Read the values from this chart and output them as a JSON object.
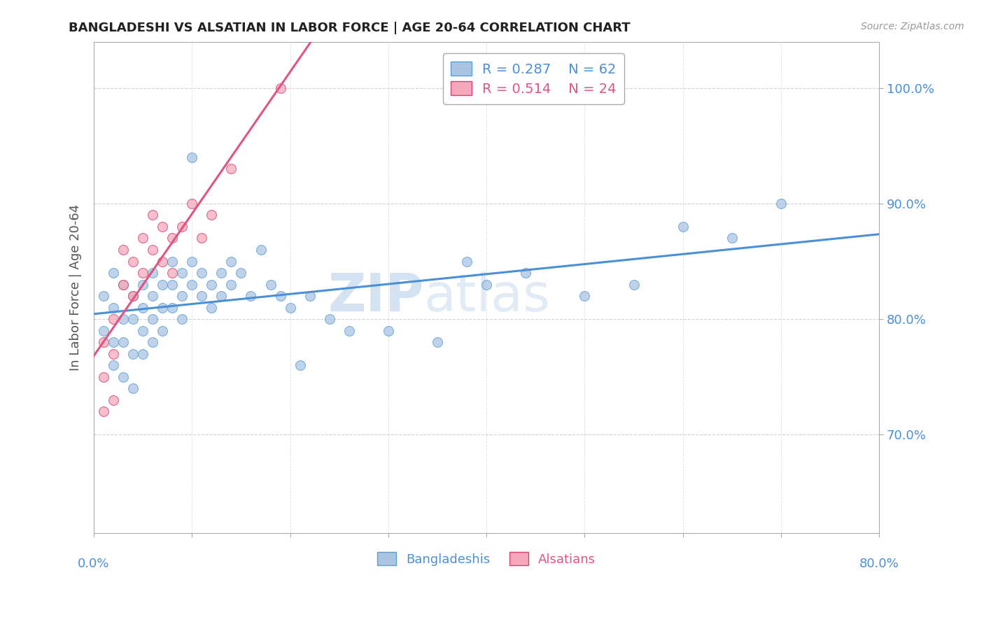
{
  "title": "BANGLADESHI VS ALSATIAN IN LABOR FORCE | AGE 20-64 CORRELATION CHART",
  "source": "Source: ZipAtlas.com",
  "ylabel": "In Labor Force | Age 20-64",
  "ytick_values": [
    0.7,
    0.8,
    0.9,
    1.0
  ],
  "xlim": [
    0.0,
    0.8
  ],
  "ylim": [
    0.615,
    1.04
  ],
  "legend_blue": "R = 0.287    N = 62",
  "legend_pink": "R = 0.514    N = 24",
  "legend_label_blue": "Bangladeshis",
  "legend_label_pink": "Alsatians",
  "blue_scatter_x": [
    0.01,
    0.01,
    0.02,
    0.02,
    0.02,
    0.02,
    0.03,
    0.03,
    0.03,
    0.03,
    0.04,
    0.04,
    0.04,
    0.04,
    0.05,
    0.05,
    0.05,
    0.05,
    0.06,
    0.06,
    0.06,
    0.06,
    0.07,
    0.07,
    0.07,
    0.08,
    0.08,
    0.08,
    0.09,
    0.09,
    0.09,
    0.1,
    0.1,
    0.11,
    0.11,
    0.12,
    0.12,
    0.13,
    0.13,
    0.14,
    0.14,
    0.15,
    0.16,
    0.17,
    0.18,
    0.19,
    0.2,
    0.21,
    0.22,
    0.24,
    0.26,
    0.3,
    0.35,
    0.4,
    0.44,
    0.5,
    0.55,
    0.6,
    0.65,
    0.7,
    0.1,
    0.38
  ],
  "blue_scatter_y": [
    0.82,
    0.79,
    0.84,
    0.81,
    0.78,
    0.76,
    0.83,
    0.8,
    0.78,
    0.75,
    0.82,
    0.8,
    0.77,
    0.74,
    0.83,
    0.81,
    0.79,
    0.77,
    0.84,
    0.82,
    0.8,
    0.78,
    0.83,
    0.81,
    0.79,
    0.85,
    0.83,
    0.81,
    0.84,
    0.82,
    0.8,
    0.85,
    0.83,
    0.84,
    0.82,
    0.83,
    0.81,
    0.84,
    0.82,
    0.85,
    0.83,
    0.84,
    0.82,
    0.86,
    0.83,
    0.82,
    0.81,
    0.76,
    0.82,
    0.8,
    0.79,
    0.79,
    0.78,
    0.83,
    0.84,
    0.82,
    0.83,
    0.88,
    0.87,
    0.9,
    0.94,
    0.85
  ],
  "pink_scatter_x": [
    0.01,
    0.01,
    0.01,
    0.02,
    0.02,
    0.02,
    0.03,
    0.03,
    0.04,
    0.04,
    0.05,
    0.05,
    0.06,
    0.06,
    0.07,
    0.07,
    0.08,
    0.08,
    0.09,
    0.1,
    0.11,
    0.12,
    0.14,
    0.19
  ],
  "pink_scatter_y": [
    0.72,
    0.75,
    0.78,
    0.77,
    0.8,
    0.73,
    0.83,
    0.86,
    0.82,
    0.85,
    0.84,
    0.87,
    0.86,
    0.89,
    0.85,
    0.88,
    0.87,
    0.84,
    0.88,
    0.9,
    0.87,
    0.89,
    0.93,
    1.0
  ],
  "blue_color": "#aac4e2",
  "pink_color": "#f5a8bb",
  "blue_line_color": "#4a90d9",
  "pink_line_color": "#e05580",
  "blue_marker_edge": "#5a9fd4",
  "pink_marker_edge": "#d94070",
  "watermark_zip": "ZIP",
  "watermark_atlas": "atlas",
  "marker_size": 100,
  "line_width": 2.2,
  "grid_color": "#cccccc",
  "spine_color": "#aaaaaa",
  "tick_color": "#4a90d9",
  "title_color": "#222222",
  "ylabel_color": "#555555",
  "source_color": "#999999"
}
